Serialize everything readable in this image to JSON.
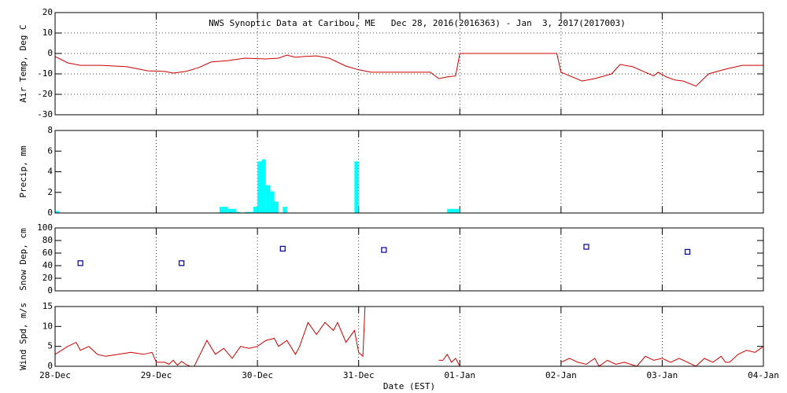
{
  "chart_data": [
    {
      "type": "line",
      "title": "NWS Synoptic Data at Caribou, ME   Dec 28, 2016(2016363) - Jan  3, 2017(2017003)",
      "ylabel": "Air Temp, Deg C",
      "xlim": [
        0,
        168
      ],
      "ylim": [
        -30,
        20
      ],
      "yticks": [
        -30,
        -20,
        -10,
        0,
        10,
        20
      ],
      "ygrid": true,
      "xgrid": true,
      "series": [
        {
          "color": "#cc0000",
          "x": [
            0,
            3,
            6,
            11,
            17,
            22,
            26,
            28,
            31,
            34,
            37,
            41,
            45,
            50,
            53,
            55,
            57,
            59,
            62,
            65,
            69,
            72,
            75,
            89,
            91,
            93,
            95,
            96,
            119,
            120,
            125,
            128,
            132,
            134,
            137,
            140,
            142,
            143,
            145,
            147,
            149,
            152,
            155,
            159,
            163,
            168
          ],
          "values": [
            -1.5,
            -4.6,
            -5.8,
            -5.8,
            -6.5,
            -8.5,
            -8.8,
            -9.6,
            -8.8,
            -7,
            -4.2,
            -3.5,
            -2.3,
            -2.7,
            -2.3,
            -0.8,
            -1.9,
            -1.5,
            -1.2,
            -2.3,
            -6.2,
            -8,
            -9.2,
            -9.2,
            -12.3,
            -11.5,
            -11,
            0,
            0,
            -9.2,
            -13.5,
            -12.3,
            -10,
            -5.4,
            -6.5,
            -9.2,
            -11,
            -9.2,
            -11.5,
            -13,
            -13.5,
            -16,
            -10,
            -7.7,
            -5.8,
            -5.8
          ]
        }
      ]
    },
    {
      "type": "bar",
      "ylabel": "Precip, mm",
      "xlim": [
        0,
        168
      ],
      "ylim": [
        0,
        8
      ],
      "yticks": [
        0,
        2,
        4,
        6,
        8
      ],
      "ygrid": false,
      "xgrid": true,
      "series": [
        {
          "color": "#00ffff",
          "x": [
            0,
            39,
            40,
            41,
            42,
            43,
            45,
            46,
            47,
            48,
            49,
            50,
            51,
            52,
            54,
            71,
            93,
            94,
            95
          ],
          "values": [
            0.2,
            0.6,
            0.6,
            0.4,
            0.4,
            0.1,
            0.1,
            0.1,
            0.6,
            5,
            5.2,
            2.7,
            2.1,
            1.1,
            0.6,
            5,
            0.4,
            0.4,
            0.4
          ]
        }
      ]
    },
    {
      "type": "scatter",
      "ylabel": "Snow Dep, cm",
      "xlim": [
        0,
        168
      ],
      "ylim": [
        0,
        100
      ],
      "yticks": [
        0,
        20,
        40,
        60,
        80,
        100
      ],
      "ygrid": false,
      "xgrid": true,
      "series": [
        {
          "color": "#000099",
          "x": [
            6,
            30,
            54,
            78,
            126,
            150
          ],
          "values": [
            44,
            44,
            67,
            65,
            70,
            62
          ]
        }
      ]
    },
    {
      "type": "line",
      "ylabel": "Wind Spd, m/s",
      "xlabel": "Date (EST)",
      "xlim": [
        0,
        168
      ],
      "ylim": [
        0,
        15
      ],
      "yticks": [
        0,
        5,
        10,
        15
      ],
      "ygrid": false,
      "xgrid": true,
      "xticks": [
        {
          "value": 0,
          "label": "28-Dec"
        },
        {
          "value": 24,
          "label": "29-Dec"
        },
        {
          "value": 48,
          "label": "30-Dec"
        },
        {
          "value": 72,
          "label": "31-Dec"
        },
        {
          "value": 96,
          "label": "01-Jan"
        },
        {
          "value": 120,
          "label": "02-Jan"
        },
        {
          "value": 144,
          "label": "03-Jan"
        },
        {
          "value": 168,
          "label": "04-Jan"
        }
      ],
      "series": [
        {
          "color": "#cc0000",
          "x": [
            0,
            3,
            5,
            6,
            8,
            10,
            12,
            15,
            18,
            21,
            23,
            24,
            26,
            27,
            28,
            29,
            30,
            31,
            32,
            33,
            36,
            38,
            40,
            42,
            44,
            46,
            48,
            50,
            52,
            53,
            55,
            57,
            58,
            60,
            62,
            64,
            66,
            67,
            69,
            71,
            72,
            73,
            73.5,
            80,
            91,
            92,
            93,
            94,
            95,
            96,
            108,
            120,
            122,
            124,
            126,
            128,
            129,
            131,
            133,
            135,
            138,
            140,
            142,
            144,
            146,
            148,
            150,
            152,
            154,
            156,
            158,
            159,
            160,
            162,
            164,
            166,
            168
          ],
          "values": [
            3,
            5,
            6,
            4,
            5,
            3,
            2.5,
            3,
            3.5,
            3,
            3.5,
            1,
            1,
            0.5,
            1.5,
            0.3,
            1.2,
            0.5,
            0,
            0,
            6.5,
            3,
            4.5,
            2,
            5,
            4.5,
            5,
            6.5,
            7,
            5,
            6.5,
            3,
            5,
            11,
            8,
            11,
            9,
            11,
            6,
            9,
            3.5,
            2.5,
            15,
            null,
            1.5,
            1.5,
            3,
            1,
            2,
            0,
            null,
            1,
            2,
            1,
            0.5,
            2,
            0,
            1.5,
            0.5,
            1,
            0,
            2.5,
            1.5,
            2,
            1,
            2,
            1,
            0,
            2,
            1,
            2.5,
            1,
            1,
            3,
            4,
            3.5,
            5
          ]
        }
      ]
    }
  ]
}
